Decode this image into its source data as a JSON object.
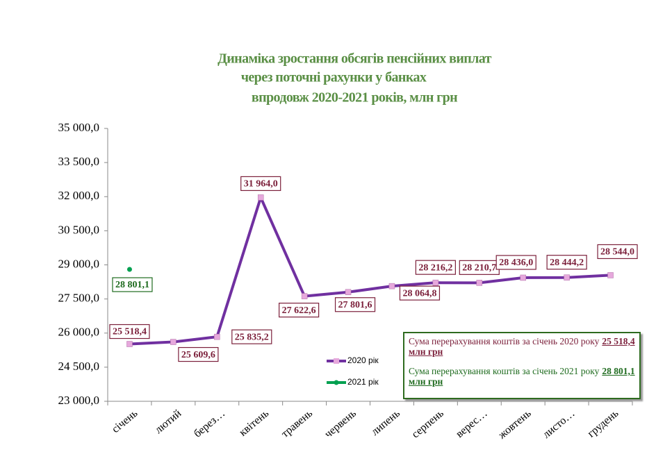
{
  "chart_data": {
    "type": "line",
    "title": [
      "Динаміка зростання обсягів пенсійних виплат",
      "через поточні рахунки у банках",
      "впродовж 2020-2021 років, млн грн"
    ],
    "categories": [
      "січень",
      "лютий",
      "берез…",
      "квітень",
      "травень",
      "червень",
      "липень",
      "серпень",
      "верес…",
      "жовтень",
      "листо…",
      "грудень"
    ],
    "series": [
      {
        "name": "2020 рік",
        "color": "#7030a0",
        "marker_color": "#e6a8dc",
        "values": [
          25518.4,
          25609.6,
          25835.2,
          31964.0,
          27622.6,
          27801.6,
          28064.8,
          28216.2,
          28210.7,
          28436.0,
          28444.2,
          28544.0
        ],
        "value_labels": [
          "25 518,4",
          "25 609,6",
          "25 835,2",
          "31 964,0",
          "27 622,6",
          "27 801,6",
          "28 064,8",
          "28 216,2",
          "28 210,7",
          "28 436,0",
          "28 444,2",
          "28 544,0"
        ],
        "label_color": "#7b1f3a"
      },
      {
        "name": "2021 рік",
        "color": "#00a050",
        "marker_color": "#00a050",
        "values": [
          28801.1,
          null,
          null,
          null,
          null,
          null,
          null,
          null,
          null,
          null,
          null,
          null
        ],
        "value_labels": [
          "28 801,1",
          null,
          null,
          null,
          null,
          null,
          null,
          null,
          null,
          null,
          null,
          null
        ],
        "label_color": "#1e6b1e"
      }
    ],
    "ylim": [
      23000,
      35000
    ],
    "yticks": [
      {
        "value": 23000,
        "label": "23 000,0"
      },
      {
        "value": 24500,
        "label": "24 500,0"
      },
      {
        "value": 26000,
        "label": "26 000,0"
      },
      {
        "value": 27500,
        "label": "27 500,0"
      },
      {
        "value": 29000,
        "label": "29 000,0"
      },
      {
        "value": 30500,
        "label": "30 500,0"
      },
      {
        "value": 32000,
        "label": "32 000,0"
      },
      {
        "value": 33500,
        "label": "33 500,0"
      },
      {
        "value": 35000,
        "label": "35 000,0"
      }
    ],
    "grid": false,
    "annotations": [
      {
        "text": "Сума перерахування коштів  за січень 2020 року",
        "highlight": "25 518,4 млн грн",
        "color": "#7b1f3a"
      },
      {
        "text": "Сума перерахування коштів  за січень 2021 року",
        "highlight": "28 801,1 млн грн",
        "color": "#1e6b1e"
      }
    ]
  }
}
